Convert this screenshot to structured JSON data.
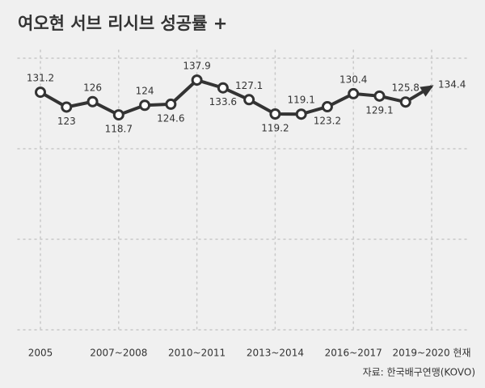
{
  "chart_data": {
    "type": "line",
    "title": "여오현 서브 리시브 성공률 +",
    "source": "자료: 한국배구연맹(KOVO)",
    "categories": [
      "2005",
      null,
      null,
      "2007~2008",
      null,
      null,
      "2010~2011",
      null,
      null,
      "2013~2014",
      null,
      null,
      "2016~2017",
      null,
      null,
      "2019~2020 현재"
    ],
    "series": [
      {
        "name": "서브 리시브 성공률",
        "color": "#333333",
        "values": [
          131.2,
          123,
          126,
          118.7,
          124,
          124.6,
          137.9,
          133.6,
          127.1,
          119.2,
          119.1,
          123.2,
          130.4,
          129.1,
          125.8,
          134.4
        ]
      }
    ],
    "ylim": [
      0,
      150
    ],
    "yticks": [
      0,
      50,
      100,
      150
    ],
    "grid": true
  }
}
